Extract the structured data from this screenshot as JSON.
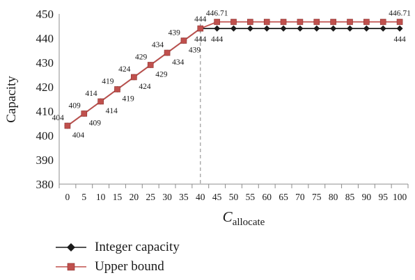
{
  "chart_data": {
    "type": "line",
    "ylabel": "Capacity",
    "xlabel_main": "C",
    "xlabel_sub": "allocate",
    "x": [
      0,
      5,
      10,
      15,
      20,
      25,
      30,
      35,
      40,
      45,
      50,
      55,
      60,
      65,
      70,
      75,
      80,
      85,
      90,
      95,
      100
    ],
    "ylim": [
      380,
      450
    ],
    "yticks": [
      380,
      390,
      400,
      410,
      420,
      430,
      440,
      450
    ],
    "grid": false,
    "reference_line_x": 40,
    "legend_position": "bottom-left",
    "series": [
      {
        "name": "Integer capacity",
        "color": "#1a1a1a",
        "marker": "diamond",
        "values": [
          404,
          409,
          414,
          419,
          424,
          429,
          434,
          439,
          444,
          444,
          444,
          444,
          444,
          444,
          444,
          444,
          444,
          444,
          444,
          444,
          444
        ],
        "data_labels": [
          {
            "index": 0,
            "text": "404"
          },
          {
            "index": 1,
            "text": "409"
          },
          {
            "index": 2,
            "text": "414"
          },
          {
            "index": 3,
            "text": "419"
          },
          {
            "index": 4,
            "text": "424"
          },
          {
            "index": 5,
            "text": "429"
          },
          {
            "index": 6,
            "text": "434"
          },
          {
            "index": 7,
            "text": "439"
          },
          {
            "index": 8,
            "text": "444"
          },
          {
            "index": 9,
            "text": "444"
          },
          {
            "index": 20,
            "text": "444"
          }
        ]
      },
      {
        "name": "Upper bound",
        "color": "#c0504d",
        "marker": "square",
        "values": [
          404,
          409,
          414,
          419,
          424,
          429,
          434,
          439,
          444,
          446.71,
          446.71,
          446.71,
          446.71,
          446.71,
          446.71,
          446.71,
          446.71,
          446.71,
          446.71,
          446.71,
          446.71
        ],
        "data_labels": [
          {
            "index": 0,
            "text": "404"
          },
          {
            "index": 1,
            "text": "409"
          },
          {
            "index": 2,
            "text": "414"
          },
          {
            "index": 3,
            "text": "419"
          },
          {
            "index": 4,
            "text": "424"
          },
          {
            "index": 5,
            "text": "429"
          },
          {
            "index": 6,
            "text": "434"
          },
          {
            "index": 7,
            "text": "439"
          },
          {
            "index": 8,
            "text": "444"
          },
          {
            "index": 9,
            "text": "446.71"
          },
          {
            "index": 20,
            "text": "446.71"
          }
        ]
      }
    ]
  }
}
